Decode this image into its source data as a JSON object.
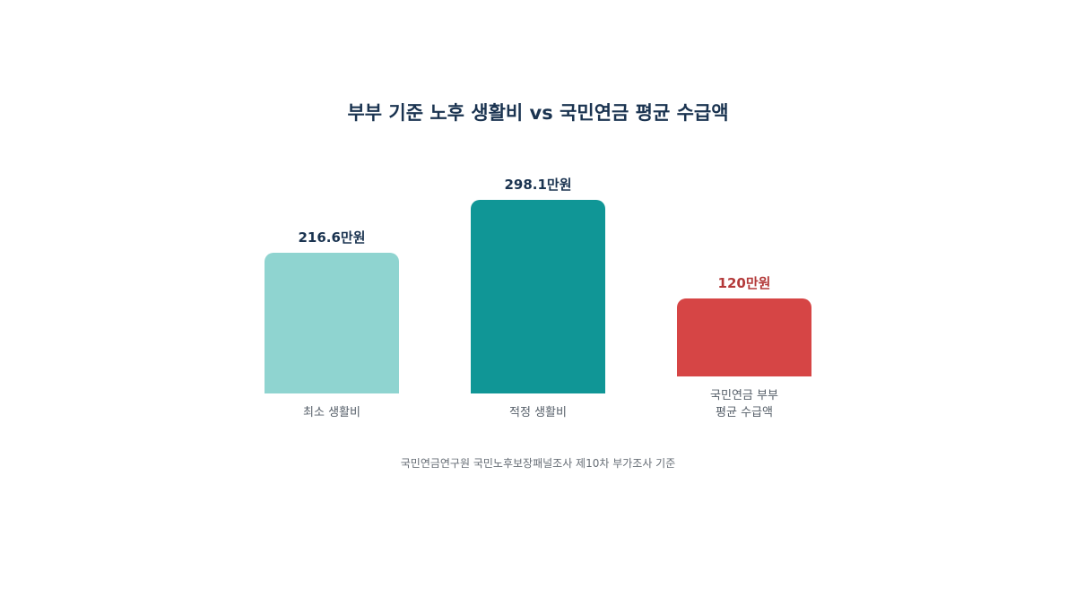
{
  "chart_data": {
    "type": "bar",
    "title": "부부 기준 노후 생활비 vs 국민연금 평균 수급액",
    "categories": [
      "최소 생활비",
      "적정 생활비",
      "국민연금 부부 평균 수급액"
    ],
    "values": [
      216.6,
      298.1,
      120
    ],
    "value_labels": [
      "216.6만원",
      "298.1만원",
      "120만원"
    ],
    "colors": [
      "#8fd4d0",
      "#109696",
      "#d64545"
    ],
    "value_label_colors": [
      "#1a3350",
      "#1a3350",
      "#b33a3a"
    ],
    "note": "국민연금연구원 국민노후보장패널조사 제10차 부가조사 기준"
  }
}
